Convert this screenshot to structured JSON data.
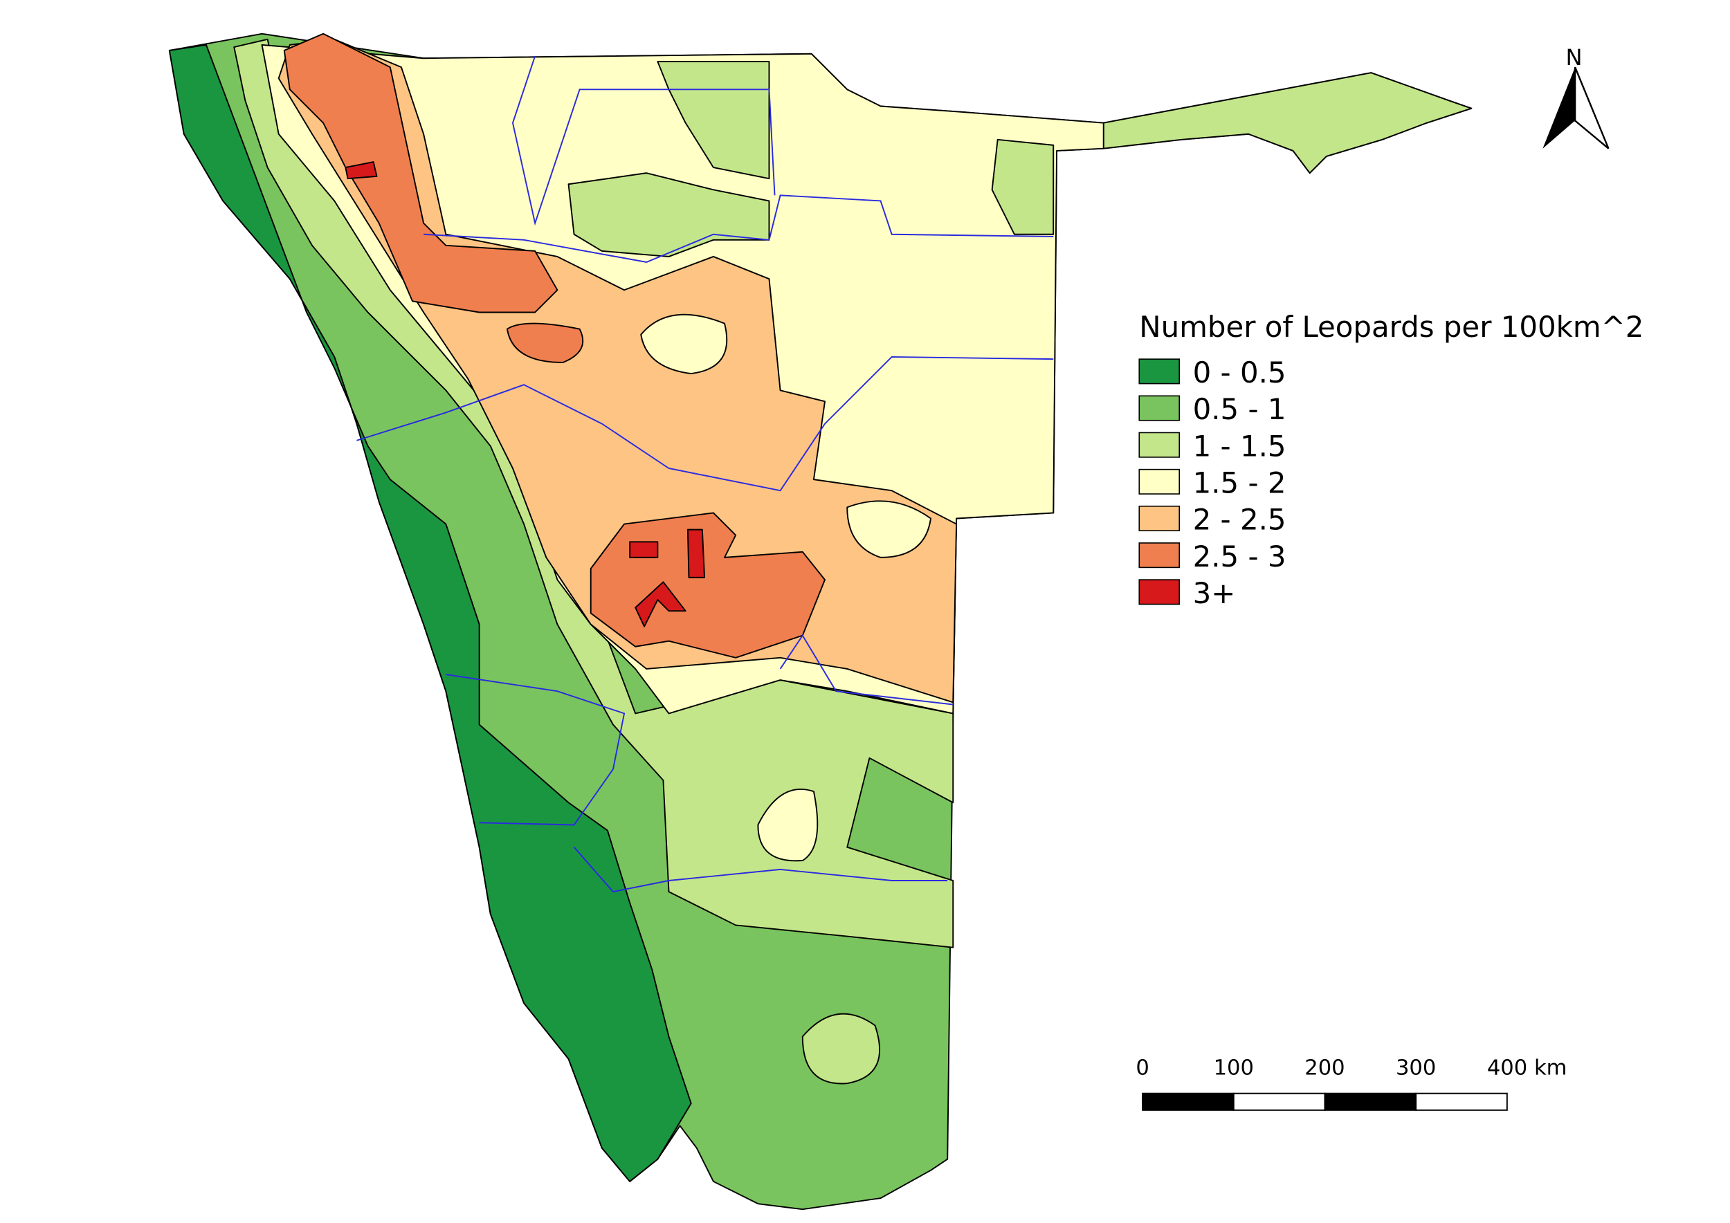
{
  "legend": {
    "title": "Number of Leopards per 100km^2",
    "items": [
      {
        "label": "0 - 0.5",
        "color": "#1a9641"
      },
      {
        "label": "0.5 - 1",
        "color": "#79c45e"
      },
      {
        "label": "1 - 1.5",
        "color": "#c4e68a"
      },
      {
        "label": "1.5 - 2",
        "color": "#ffffc6"
      },
      {
        "label": "2 - 2.5",
        "color": "#fdc484"
      },
      {
        "label": "2.5 - 3",
        "color": "#f07f4f"
      },
      {
        "label": "3+",
        "color": "#d7191c"
      }
    ]
  },
  "north_arrow": {
    "label": "N"
  },
  "scale_bar": {
    "labels": [
      "0",
      "100",
      "200",
      "300",
      "400 km"
    ]
  }
}
